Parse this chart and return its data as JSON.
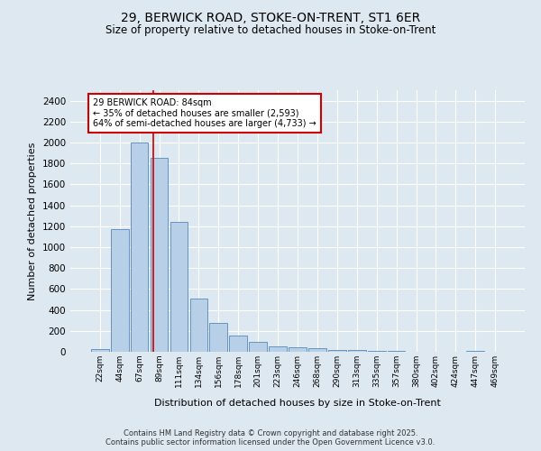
{
  "title1": "29, BERWICK ROAD, STOKE-ON-TRENT, ST1 6ER",
  "title2": "Size of property relative to detached houses in Stoke-on-Trent",
  "xlabel": "Distribution of detached houses by size in Stoke-on-Trent",
  "ylabel": "Number of detached properties",
  "categories": [
    "22sqm",
    "44sqm",
    "67sqm",
    "89sqm",
    "111sqm",
    "134sqm",
    "156sqm",
    "178sqm",
    "201sqm",
    "223sqm",
    "246sqm",
    "268sqm",
    "290sqm",
    "313sqm",
    "335sqm",
    "357sqm",
    "380sqm",
    "402sqm",
    "424sqm",
    "447sqm",
    "469sqm"
  ],
  "values": [
    30,
    1170,
    2000,
    1850,
    1240,
    510,
    275,
    155,
    95,
    50,
    45,
    35,
    20,
    15,
    5,
    10,
    0,
    0,
    0,
    10,
    0
  ],
  "bar_color": "#b8cfe8",
  "bar_edge_color": "#5588bb",
  "redline_x": 2.68,
  "annotation_title": "29 BERWICK ROAD: 84sqm",
  "annotation_line1": "← 35% of detached houses are smaller (2,593)",
  "annotation_line2": "64% of semi-detached houses are larger (4,733) →",
  "annotation_box_color": "#ffffff",
  "annotation_box_edge": "#cc0000",
  "redline_color": "#cc0000",
  "bg_color": "#dde8f0",
  "footer1": "Contains HM Land Registry data © Crown copyright and database right 2025.",
  "footer2": "Contains public sector information licensed under the Open Government Licence v3.0.",
  "ylim": [
    0,
    2500
  ],
  "yticks": [
    0,
    200,
    400,
    600,
    800,
    1000,
    1200,
    1400,
    1600,
    1800,
    2000,
    2200,
    2400
  ]
}
